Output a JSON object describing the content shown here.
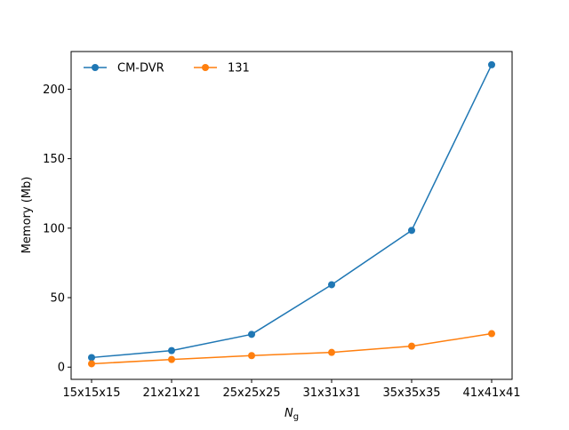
{
  "chart_data": {
    "type": "line",
    "title": "",
    "xlabel_main": "N",
    "xlabel_sub": "g",
    "ylabel": "Memory (Mb)",
    "categories": [
      "15x15x15",
      "21x21x21",
      "25x25x25",
      "31x31x31",
      "35x35x35",
      "41x41x41"
    ],
    "ylim": [
      -8.8,
      227.1
    ],
    "yticks": [
      0,
      50,
      100,
      150,
      200
    ],
    "grid": false,
    "legend": {
      "placement": "top-left",
      "ncol": 2
    },
    "series": [
      {
        "name": "CM-DVR",
        "color": "#1f77b4",
        "marker": "circle",
        "values": [
          6.9,
          11.9,
          23.6,
          59.3,
          98.4,
          217.6
        ]
      },
      {
        "name": "131",
        "color": "#ff7f0e",
        "marker": "circle",
        "values": [
          2.4,
          5.5,
          8.3,
          10.6,
          15.1,
          24.1
        ]
      }
    ]
  }
}
